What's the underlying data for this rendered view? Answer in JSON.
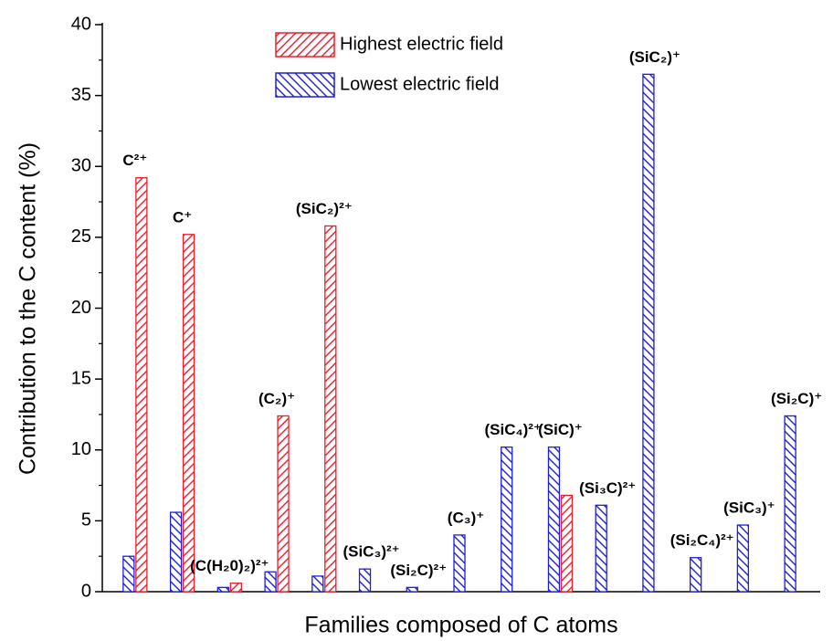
{
  "chart_data": {
    "type": "bar",
    "x_label": "Families composed of C atoms",
    "y_label": "Contribution to the C content (%)",
    "categories": [
      "C²⁺",
      "C⁺",
      "(C(H₂0)₂)²⁺",
      "(C₂)⁺",
      "(SiC₂)²⁺",
      "(SiC₃)²⁺",
      "(Si₂C)²⁺",
      "(C₃)⁺",
      "(SiC₄)²⁺",
      "(SiC)⁺",
      "(Si₃C)²⁺",
      "(SiC₂)⁺",
      "(Si₂C₄)²⁺",
      "(SiC₃)⁺",
      "(Si₂C)⁺"
    ],
    "series": [
      {
        "name": "Lowest electric field",
        "color": "#1f1fd6",
        "hatch": "backslash",
        "values": [
          2.5,
          5.6,
          0.3,
          1.4,
          1.1,
          1.6,
          0.3,
          4.0,
          10.2,
          10.2,
          6.1,
          36.5,
          2.4,
          4.7,
          12.4
        ]
      },
      {
        "name": "Highest electric field",
        "color": "#e8202a",
        "hatch": "slash",
        "values": [
          29.2,
          25.2,
          0.6,
          12.4,
          25.8,
          null,
          null,
          null,
          null,
          6.8,
          null,
          null,
          null,
          null,
          null
        ]
      }
    ],
    "legend_order": [
      "Highest electric field",
      "Lowest electric field"
    ],
    "ylim": [
      0,
      40
    ],
    "yticks": [
      0,
      5,
      10,
      15,
      20,
      25,
      30,
      35,
      40
    ],
    "grid": false
  }
}
